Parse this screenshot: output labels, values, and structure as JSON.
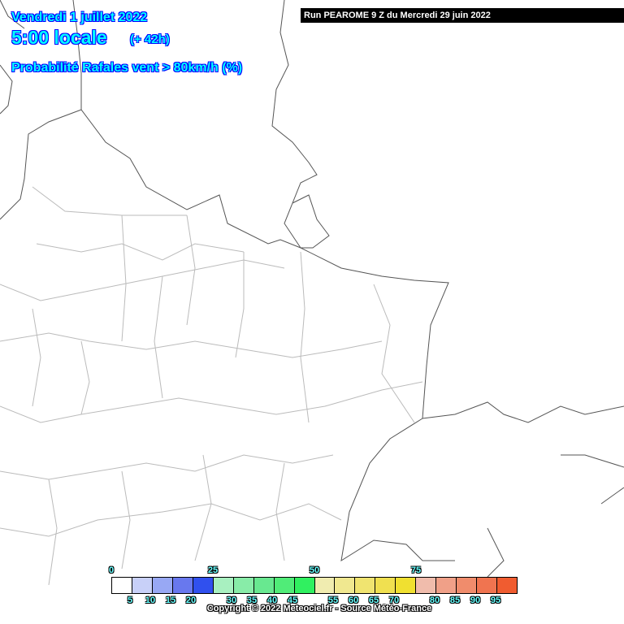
{
  "header": {
    "date": "Vendredi 1 juillet 2022",
    "time": "5:00 locale",
    "lead": "(+ 42h)",
    "parameter": "Probabilité Rafales vent > 80km/h (%)",
    "run": "Run PEAROME 9 Z du Mercredi 29 juin 2022"
  },
  "legend": {
    "unit": "%",
    "top_labels": [
      "0",
      "25",
      "50",
      "75"
    ],
    "bottom_labels": [
      "5",
      "10",
      "15",
      "20",
      "30",
      "35",
      "40",
      "45",
      "55",
      "60",
      "65",
      "70",
      "80",
      "85",
      "90",
      "95"
    ],
    "colors": [
      "#ffffff",
      "#c8d0f8",
      "#98a8f4",
      "#6878ee",
      "#3050ee",
      "#a8f0c0",
      "#88eca8",
      "#68e890",
      "#50ec78",
      "#30f060",
      "#f0ecb0",
      "#f0e890",
      "#f0e470",
      "#f0e050",
      "#f0e030",
      "#f0bcac",
      "#f0a088",
      "#f08c6c",
      "#f07450",
      "#f05c30"
    ]
  },
  "copyright": "Copyright © 2022 Meteociel.fr - Source Météo-France"
}
